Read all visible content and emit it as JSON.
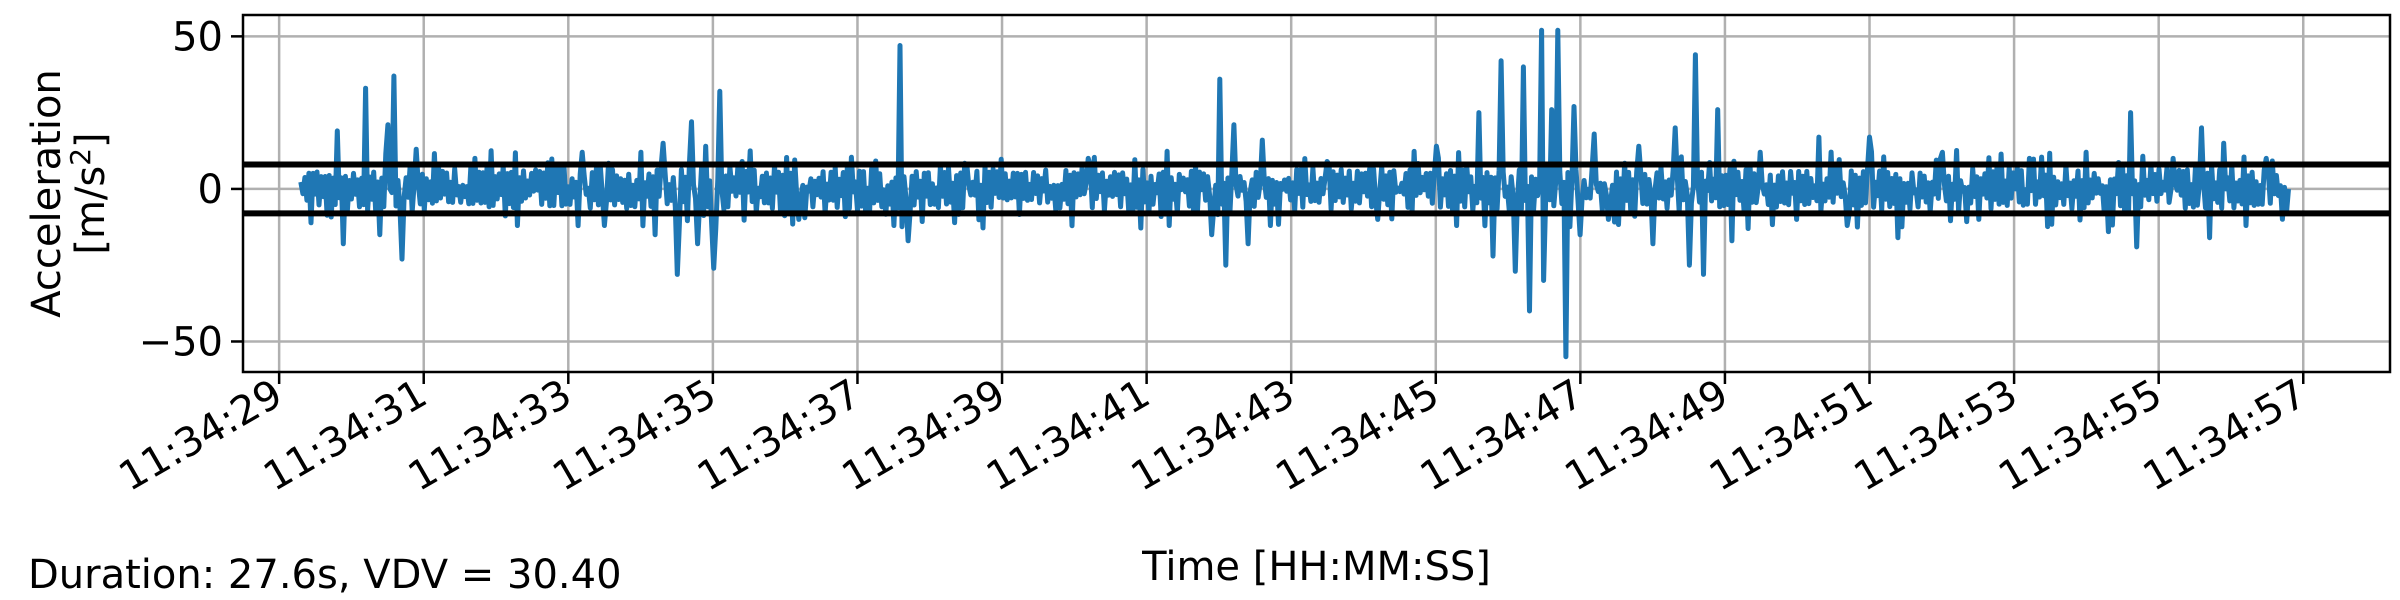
{
  "chart_data": {
    "type": "line",
    "xlabel": "Time [HH:MM:SS]",
    "ylabel_line1": "Acceleration",
    "ylabel_line2": "[m/s",
    "ylabel_sup": "2",
    "ylabel_end": "]",
    "ylim": [
      -60,
      57
    ],
    "xlim": [
      "11:34:28.5",
      "11:34:58.2"
    ],
    "y_ticks": [
      -50,
      0,
      50
    ],
    "y_tick_labels": [
      "−50",
      "0",
      "50"
    ],
    "x_ticks": [
      "11:34:29",
      "11:34:31",
      "11:34:33",
      "11:34:35",
      "11:34:37",
      "11:34:39",
      "11:34:41",
      "11:34:43",
      "11:34:45",
      "11:34:47",
      "11:34:49",
      "11:34:51",
      "11:34:53",
      "11:34:55",
      "11:34:57"
    ],
    "grid": true,
    "thresholds": [
      8,
      -8
    ],
    "signal_start": "11:34:29.3",
    "signal_end": "11:34:56.8",
    "series": [
      {
        "color": "#1f77b4",
        "peaks": [
          {
            "t": "11:34:29.8",
            "v": 19
          },
          {
            "t": "11:34:29.9",
            "v": -18
          },
          {
            "t": "11:34:30.2",
            "v": 33
          },
          {
            "t": "11:34:30.4",
            "v": -15
          },
          {
            "t": "11:34:30.5",
            "v": 21
          },
          {
            "t": "11:34:30.6",
            "v": 37
          },
          {
            "t": "11:34:30.7",
            "v": -23
          },
          {
            "t": "11:34:30.9",
            "v": 13
          },
          {
            "t": "11:34:31.7",
            "v": 10
          },
          {
            "t": "11:34:32.3",
            "v": -12
          },
          {
            "t": "11:34:33.2",
            "v": 12
          },
          {
            "t": "11:34:33.5",
            "v": -12
          },
          {
            "t": "11:34:34.0",
            "v": 12
          },
          {
            "t": "11:34:34.2",
            "v": -15
          },
          {
            "t": "11:34:34.3",
            "v": 15
          },
          {
            "t": "11:34:34.5",
            "v": -28
          },
          {
            "t": "11:34:34.7",
            "v": 22
          },
          {
            "t": "11:34:34.8",
            "v": -18
          },
          {
            "t": "11:34:34.9",
            "v": 14
          },
          {
            "t": "11:34:35.0",
            "v": -26
          },
          {
            "t": "11:34:35.1",
            "v": 32
          },
          {
            "t": "11:34:35.4",
            "v": 9
          },
          {
            "t": "11:34:36.2",
            "v": -10
          },
          {
            "t": "11:34:37.5",
            "v": -12
          },
          {
            "t": "11:34:37.6",
            "v": 47
          },
          {
            "t": "11:34:37.7",
            "v": -17
          },
          {
            "t": "11:34:38.5",
            "v": 8
          },
          {
            "t": "11:34:40.2",
            "v": 10
          },
          {
            "t": "11:34:41.3",
            "v": -12
          },
          {
            "t": "11:34:41.9",
            "v": -15
          },
          {
            "t": "11:34:42.0",
            "v": 36
          },
          {
            "t": "11:34:42.1",
            "v": -25
          },
          {
            "t": "11:34:42.2",
            "v": 21
          },
          {
            "t": "11:34:42.4",
            "v": -18
          },
          {
            "t": "11:34:42.6",
            "v": 16
          },
          {
            "t": "11:34:42.7",
            "v": -12
          },
          {
            "t": "11:34:43.5",
            "v": 9
          },
          {
            "t": "11:34:44.2",
            "v": -10
          },
          {
            "t": "11:34:45.0",
            "v": 14
          },
          {
            "t": "11:34:45.3",
            "v": -12
          },
          {
            "t": "11:34:45.6",
            "v": 25
          },
          {
            "t": "11:34:45.8",
            "v": -22
          },
          {
            "t": "11:34:45.9",
            "v": 42
          },
          {
            "t": "11:34:46.1",
            "v": -27
          },
          {
            "t": "11:34:46.2",
            "v": 40
          },
          {
            "t": "11:34:46.3",
            "v": -40
          },
          {
            "t": "11:34:46.45",
            "v": 52
          },
          {
            "t": "11:34:46.5",
            "v": -30
          },
          {
            "t": "11:34:46.6",
            "v": 26
          },
          {
            "t": "11:34:46.7",
            "v": 52
          },
          {
            "t": "11:34:46.8",
            "v": -55
          },
          {
            "t": "11:34:46.9",
            "v": 27
          },
          {
            "t": "11:34:47.0",
            "v": -15
          },
          {
            "t": "11:34:47.2",
            "v": 18
          },
          {
            "t": "11:34:47.4",
            "v": -10
          },
          {
            "t": "11:34:47.8",
            "v": 14
          },
          {
            "t": "11:34:48.0",
            "v": -18
          },
          {
            "t": "11:34:48.3",
            "v": 20
          },
          {
            "t": "11:34:48.5",
            "v": -25
          },
          {
            "t": "11:34:48.6",
            "v": 44
          },
          {
            "t": "11:34:48.7",
            "v": -28
          },
          {
            "t": "11:34:48.9",
            "v": 26
          },
          {
            "t": "11:34:49.1",
            "v": -17
          },
          {
            "t": "11:34:49.5",
            "v": 12
          },
          {
            "t": "11:34:50.0",
            "v": -10
          },
          {
            "t": "11:34:50.3",
            "v": 17
          },
          {
            "t": "11:34:50.7",
            "v": -12
          },
          {
            "t": "11:34:51.0",
            "v": 17
          },
          {
            "t": "11:34:51.4",
            "v": -16
          },
          {
            "t": "11:34:52.0",
            "v": 12
          },
          {
            "t": "11:34:52.5",
            "v": -10
          },
          {
            "t": "11:34:53.2",
            "v": 10
          },
          {
            "t": "11:34:54.0",
            "v": 12
          },
          {
            "t": "11:34:54.3",
            "v": -14
          },
          {
            "t": "11:34:54.6",
            "v": 25
          },
          {
            "t": "11:34:54.7",
            "v": -19
          },
          {
            "t": "11:34:55.2",
            "v": 10
          },
          {
            "t": "11:34:55.6",
            "v": 20
          },
          {
            "t": "11:34:55.7",
            "v": -16
          },
          {
            "t": "11:34:55.9",
            "v": 15
          },
          {
            "t": "11:34:56.2",
            "v": -12
          },
          {
            "t": "11:34:56.5",
            "v": 10
          }
        ]
      }
    ]
  },
  "footer": {
    "duration_text": "Duration: 27.6s, VDV = 30.40"
  }
}
